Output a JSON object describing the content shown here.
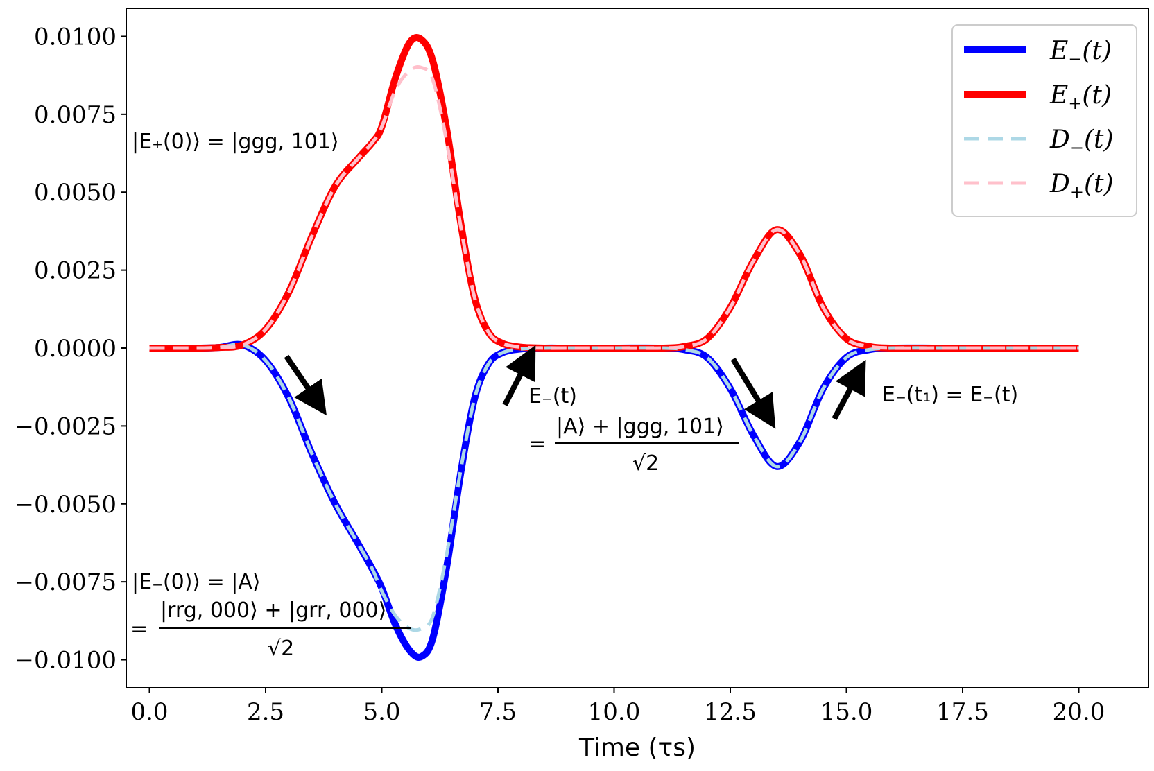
{
  "chart_data": {
    "type": "line",
    "title": "",
    "xlabel": "Time (τs)",
    "ylabel": "",
    "xlim": [
      -0.5,
      21.5
    ],
    "ylim": [
      -0.0109,
      0.0109
    ],
    "xticks": [
      0.0,
      2.5,
      5.0,
      7.5,
      10.0,
      12.5,
      15.0,
      17.5,
      20.0
    ],
    "xtick_labels": [
      "0.0",
      "2.5",
      "5.0",
      "7.5",
      "10.0",
      "12.5",
      "15.0",
      "17.5",
      "20.0"
    ],
    "yticks": [
      0.01,
      0.0075,
      0.005,
      0.0025,
      0.0,
      -0.0025,
      -0.005,
      -0.0075,
      -0.01
    ],
    "ytick_labels": [
      "0.0100",
      "0.0075",
      "0.0050",
      "0.0025",
      "0.0000",
      "−0.0025",
      "−0.0050",
      "−0.0075",
      "−0.0100"
    ],
    "legend_position": "top-right",
    "x": [
      0.0,
      1.0,
      1.5,
      2.0,
      2.5,
      3.0,
      3.5,
      4.0,
      4.5,
      4.8,
      5.0,
      5.3,
      5.6,
      5.85,
      6.1,
      6.4,
      6.7,
      7.0,
      7.3,
      7.6,
      8.0,
      8.5,
      9.0,
      10.0,
      11.0,
      11.5,
      12.0,
      12.5,
      13.0,
      13.5,
      14.0,
      14.5,
      15.0,
      15.5,
      16.0,
      17.0,
      18.0,
      19.0,
      20.0
    ],
    "series": [
      {
        "name": "E₋(t)",
        "label": "E",
        "sub": "−",
        "style": "solid",
        "color": "#0000ff",
        "values": [
          0.0,
          0.0,
          2e-05,
          0.0001,
          -0.0004,
          -0.0016,
          -0.0034,
          -0.005,
          -0.0063,
          -0.0071,
          -0.0077,
          -0.0089,
          -0.0097,
          -0.0099,
          -0.0093,
          -0.007,
          -0.004,
          -0.0016,
          -0.0005,
          -0.00015,
          -3e-05,
          0.0,
          0.0,
          0.0,
          0.0,
          -5e-05,
          -0.0003,
          -0.0013,
          -0.0028,
          -0.0038,
          -0.003,
          -0.0013,
          -0.0003,
          -5e-05,
          0.0,
          0.0,
          0.0,
          0.0,
          0.0
        ]
      },
      {
        "name": "E₊(t)",
        "label": "E",
        "sub": "+",
        "style": "solid",
        "color": "#ff0000",
        "values": [
          0.0,
          0.0,
          2e-05,
          0.0001,
          0.0006,
          0.0018,
          0.0036,
          0.0052,
          0.0061,
          0.0066,
          0.0071,
          0.0087,
          0.0098,
          0.0099,
          0.0092,
          0.007,
          0.004,
          0.0016,
          0.0005,
          0.00015,
          3e-05,
          0.0,
          0.0,
          0.0,
          0.0,
          5e-05,
          0.0003,
          0.0013,
          0.0028,
          0.0038,
          0.003,
          0.0013,
          0.0003,
          5e-05,
          0.0,
          0.0,
          0.0,
          0.0,
          0.0
        ]
      },
      {
        "name": "D₋(t)",
        "label": "D",
        "sub": "−",
        "style": "dashed",
        "color": "#add8e6",
        "values": [
          0.0,
          0.0,
          2e-05,
          0.0001,
          -0.0004,
          -0.0016,
          -0.0034,
          -0.005,
          -0.0063,
          -0.0071,
          -0.0078,
          -0.0086,
          -0.009,
          -0.009,
          -0.0086,
          -0.0066,
          -0.0039,
          -0.0016,
          -0.0005,
          -0.00015,
          -3e-05,
          0.0,
          0.0,
          0.0,
          0.0,
          -5e-05,
          -0.0003,
          -0.0013,
          -0.0028,
          -0.0038,
          -0.003,
          -0.0013,
          -0.0003,
          -5e-05,
          0.0,
          0.0,
          0.0,
          0.0,
          0.0
        ]
      },
      {
        "name": "D₊(t)",
        "label": "D",
        "sub": "+",
        "style": "dashed",
        "color": "#ffc0cb",
        "values": [
          0.0,
          0.0,
          2e-05,
          0.0001,
          0.0006,
          0.0018,
          0.0036,
          0.0052,
          0.0061,
          0.0066,
          0.0071,
          0.0083,
          0.0089,
          0.009,
          0.0086,
          0.0066,
          0.0039,
          0.0016,
          0.0005,
          0.00015,
          3e-05,
          0.0,
          0.0,
          0.0,
          0.0,
          5e-05,
          0.0003,
          0.0013,
          0.0028,
          0.0038,
          0.003,
          0.0013,
          0.0003,
          5e-05,
          0.0,
          0.0,
          0.0,
          0.0,
          0.0
        ]
      }
    ],
    "annotations": {
      "e_plus_0": "|E₊(0)⟩ = |ggg, 101⟩",
      "e_minus_0": "|E₋(0)⟩ = |A⟩",
      "e_minus_0_num": "|rrg, 000⟩ + |grr, 000⟩",
      "e_minus_t": "E₋(t)",
      "e_minus_t_num": "|A⟩ + |ggg, 101⟩",
      "equals": "=",
      "sqrt2": "√2",
      "e_minus_t1": "E₋(t₁) = E₋(t)"
    }
  }
}
